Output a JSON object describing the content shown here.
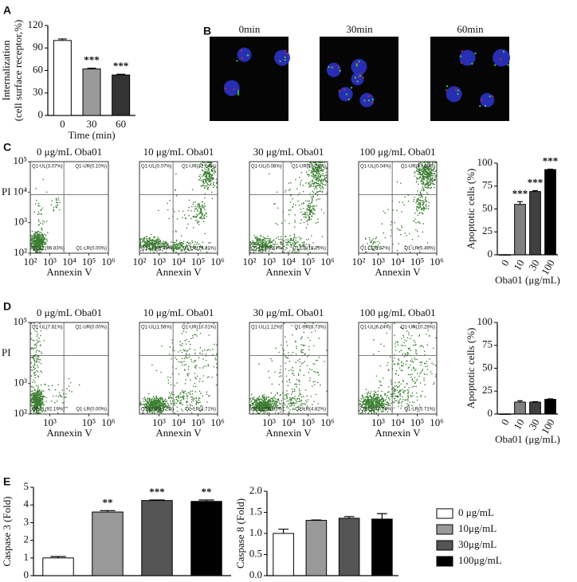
{
  "chart_data": [
    {
      "type": "bar",
      "panel": "A",
      "ylabel": [
        "Internalization",
        "(cell surface receptor,%)"
      ],
      "xlabel": "Time (min)",
      "categories": [
        "0",
        "30",
        "60"
      ],
      "values": [
        100,
        62,
        54
      ],
      "errors": [
        2,
        1,
        1
      ],
      "annotations": [
        null,
        "***",
        "***"
      ],
      "colors": [
        "#ffffff",
        "#9a9a9a",
        "#333333"
      ],
      "ylim": [
        0,
        120
      ],
      "yticks": [
        0,
        30,
        60,
        90,
        120
      ]
    },
    {
      "type": "image",
      "panel": "B",
      "titles": [
        "0min",
        "30min",
        "60min"
      ]
    },
    {
      "type": "scatter",
      "panel": "C",
      "title": "0 μg/mL Oba01",
      "xlabel": "Annexin V",
      "ylabel": "PI",
      "quadrants": [
        "Q1-UL(3.07%)",
        "Q1-UR(0.10%)",
        "Q1-LL(96.83%)",
        "Q1-LR(0.00%)"
      ],
      "log": true,
      "xlim": [
        100,
        1000000
      ],
      "ylim": [
        100,
        100000
      ],
      "xticks": [
        {
          "value": 100,
          "label": "10²"
        },
        {
          "value": 1000,
          "label": "10³"
        },
        {
          "value": 10000,
          "label": "10⁴"
        },
        {
          "value": 100000,
          "label": "10⁵"
        },
        {
          "value": 1000000,
          "label": "10⁶"
        }
      ],
      "yticks": [
        {
          "value": 100,
          "label": "10²"
        },
        {
          "value": 1000,
          "label": "10³"
        },
        {
          "value": 10000,
          "label": "10⁴"
        },
        {
          "value": 100000,
          "label": "10⁵"
        }
      ],
      "color": "#3d7f33"
    },
    {
      "type": "scatter",
      "title": "10 μg/mL Oba01",
      "xlabel": "Annexin V",
      "quadrants": [
        "Q1-UL(0.07%)",
        "Q1-UR(32.14%)",
        "Q1-LL(48.48%)",
        "Q1-LR(19.31%)"
      ],
      "log": true,
      "xlim": [
        100,
        1000000
      ],
      "ylim": [
        100,
        100000
      ],
      "xticks": [
        {
          "value": 100,
          "label": "10²"
        },
        {
          "value": 1000,
          "label": "10³"
        },
        {
          "value": 10000,
          "label": "10⁴"
        },
        {
          "value": 100000,
          "label": "10⁵"
        },
        {
          "value": 1000000,
          "label": "10⁶"
        }
      ],
      "color": "#3d7f33"
    },
    {
      "type": "scatter",
      "title": "30 μg/mL Oba01",
      "xlabel": "Annexin V",
      "quadrants": [
        "Q1-UL(0.08%)",
        "Q1-UR(49.21%)",
        "Q1-LL(32.67%)",
        "Q1-LR(18.05%)"
      ],
      "log": true,
      "xlim": [
        100,
        1000000
      ],
      "ylim": [
        100,
        100000
      ],
      "xticks": [
        {
          "value": 100,
          "label": "10²"
        },
        {
          "value": 1000,
          "label": "10³"
        },
        {
          "value": 10000,
          "label": "10⁴"
        },
        {
          "value": 100000,
          "label": "10⁵"
        },
        {
          "value": 1000000,
          "label": "10⁶"
        }
      ],
      "color": "#3d7f33"
    },
    {
      "type": "scatter",
      "title": "100 μg/mL Oba01",
      "xlabel": "Annexin V",
      "quadrants": [
        "Q1-UL(0.04%)",
        "Q1-UR(87.60%)",
        "Q1-LL(6.87%)",
        "Q1-LR(5.49%)"
      ],
      "log": true,
      "xlim": [
        100,
        1000000
      ],
      "ylim": [
        100,
        100000
      ],
      "xticks": [
        {
          "value": 100,
          "label": "10²"
        },
        {
          "value": 1000,
          "label": "10³"
        },
        {
          "value": 10000,
          "label": "10⁴"
        },
        {
          "value": 100000,
          "label": "10⁵"
        },
        {
          "value": 1000000,
          "label": "10⁶"
        }
      ],
      "color": "#3d7f33"
    },
    {
      "type": "bar",
      "ylabel": [
        "Apoptotic cells (%)"
      ],
      "xlabel": "Oba01 (μg/mL)",
      "categories": [
        "0",
        "10",
        "30",
        "100"
      ],
      "values": [
        0,
        55,
        69,
        93
      ],
      "errors": [
        0,
        3,
        1,
        0.5
      ],
      "annotations": [
        null,
        "***",
        "***",
        "***"
      ],
      "colors": [
        "#ffffff",
        "#808080",
        "#404040",
        "#000000"
      ],
      "ylim": [
        0,
        100
      ],
      "yticks": [
        0,
        25,
        50,
        75,
        100
      ]
    },
    {
      "type": "scatter",
      "panel": "D",
      "title": "0 μg/mL Oba01",
      "xlabel": "Annexin V",
      "ylabel": "PI",
      "quadrants": [
        "Q1-UL(7.81%)",
        "Q1-UR(0.00%)",
        "Q1-LL(92.19%)",
        "Q1-LR(0.00%)"
      ],
      "log": true,
      "xlim": [
        100,
        1000000
      ],
      "ylim": [
        100,
        100000
      ],
      "xticks": [
        {
          "value": 1000,
          "label": "10³"
        },
        {
          "value": 100000,
          "label": "10⁵"
        },
        {
          "value": 1000000,
          "label": "10⁶"
        }
      ],
      "yticks": [
        {
          "value": 100,
          "label": "10²"
        },
        {
          "value": 1000,
          "label": "10³"
        },
        {
          "value": 100000,
          "label": "10⁵"
        }
      ],
      "color": "#3d7f33"
    },
    {
      "type": "scatter",
      "title": "10 μg/mL Oba01",
      "xlabel": "Annexin V",
      "quadrants": [
        "Q1-UL(1.56%)",
        "Q1-UR(10.01%)",
        "Q1-LL(83.72%)",
        "Q1-LR(4.71%)"
      ],
      "log": true,
      "xlim": [
        100,
        1000000
      ],
      "ylim": [
        100,
        100000
      ],
      "xticks": [
        {
          "value": 1000,
          "label": "10³"
        },
        {
          "value": 10000,
          "label": "10⁴"
        },
        {
          "value": 100000,
          "label": "10⁵"
        },
        {
          "value": 1000000,
          "label": "10⁶"
        }
      ],
      "color": "#3d7f33"
    },
    {
      "type": "scatter",
      "title": "30 μg/mL Oba01",
      "xlabel": "Annexin V",
      "quadrants": [
        "Q1-UL(1.12%)",
        "Q1-UR(8.73%)",
        "Q1-LL(85.33%)",
        "Q1-LR(4.82%)"
      ],
      "log": true,
      "xlim": [
        100,
        1000000
      ],
      "ylim": [
        100,
        100000
      ],
      "xticks": [
        {
          "value": 1000,
          "label": "10³"
        },
        {
          "value": 10000,
          "label": "10⁴"
        },
        {
          "value": 100000,
          "label": "10⁵"
        },
        {
          "value": 1000000,
          "label": "10⁶"
        }
      ],
      "color": "#3d7f33"
    },
    {
      "type": "scatter",
      "title": "100 μg/mL Oba01",
      "xlabel": "Annexin V",
      "quadrants": [
        "Q1-UL(6.24%)",
        "Q1-UR(10.26%)",
        "Q1-LL(77.79%)",
        "Q1-LR(5.71%)"
      ],
      "log": true,
      "xlim": [
        100,
        1000000
      ],
      "ylim": [
        100,
        100000
      ],
      "xticks": [
        {
          "value": 1000,
          "label": "10³"
        },
        {
          "value": 10000,
          "label": "10⁴"
        },
        {
          "value": 100000,
          "label": "10⁵"
        },
        {
          "value": 1000000,
          "label": "10⁶"
        }
      ],
      "color": "#3d7f33"
    },
    {
      "type": "bar",
      "ylabel": [
        "Apoptotic cells (%)"
      ],
      "xlabel": "Oba01 (μg/mL)",
      "categories": [
        "0",
        "10",
        "30",
        "100"
      ],
      "values": [
        0,
        13,
        13,
        16
      ],
      "errors": [
        0,
        1.5,
        0.5,
        0.5
      ],
      "colors": [
        "#ffffff",
        "#808080",
        "#404040",
        "#000000"
      ],
      "ylim": [
        0,
        100
      ],
      "yticks": [
        0,
        25,
        50,
        75,
        100
      ]
    },
    {
      "type": "bar",
      "panel": "E",
      "ylabel": [
        "Caspase 3 (Fold)"
      ],
      "values": [
        1,
        3.6,
        4.25,
        4.2
      ],
      "errors": [
        0.08,
        0.08,
        0.03,
        0.08
      ],
      "annotations": [
        null,
        "**",
        "***",
        "**"
      ],
      "colors": [
        "#ffffff",
        "#999999",
        "#555555",
        "#000000"
      ],
      "ylim": [
        0,
        5
      ],
      "yticks": [
        0,
        1,
        2,
        3,
        4,
        5
      ]
    },
    {
      "type": "bar",
      "ylabel": [
        "Caspase 8 (Fold)"
      ],
      "legend": true,
      "categories": [
        "0 μg/mL",
        "10μg/mL",
        "30μg/mL",
        "100μg/mL"
      ],
      "values": [
        1.0,
        1.31,
        1.36,
        1.34
      ],
      "errors": [
        0.1,
        0.01,
        0.04,
        0.13
      ],
      "colors": [
        "#ffffff",
        "#999999",
        "#555555",
        "#000000"
      ],
      "ylim": [
        0,
        2
      ],
      "yticks": [
        {
          "value": 0,
          "label": "0.0"
        },
        {
          "value": 0.5,
          "label": "0.5"
        },
        {
          "value": 1,
          "label": "1.0"
        },
        {
          "value": 1.5,
          "label": "1.5"
        },
        {
          "value": 2,
          "label": "2.0"
        }
      ]
    }
  ]
}
